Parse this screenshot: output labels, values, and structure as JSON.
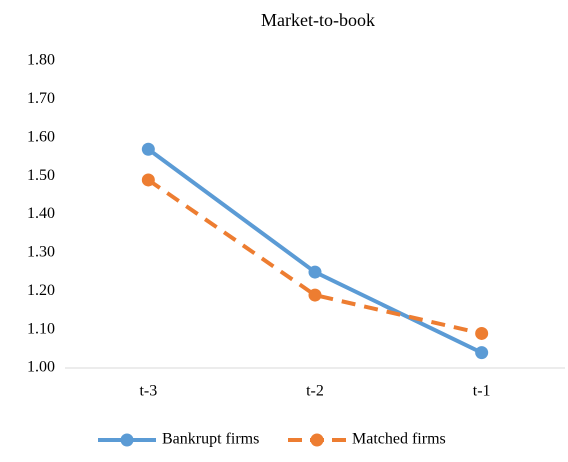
{
  "chart_data": {
    "type": "line",
    "title": "Market-to-book",
    "categories": [
      "t-3",
      "t-2",
      "t-1"
    ],
    "series": [
      {
        "name": "Bankrupt firms",
        "color": "#5b9bd5",
        "line_style": "solid",
        "values": [
          1.57,
          1.25,
          1.04
        ]
      },
      {
        "name": "Matched firms",
        "color": "#ed7d31",
        "line_style": "dashed",
        "values": [
          1.49,
          1.19,
          1.09
        ]
      }
    ],
    "ylim": [
      1.0,
      1.8
    ],
    "yticks": [
      {
        "value": 1.0,
        "label": "1.00"
      },
      {
        "value": 1.1,
        "label": "1.10"
      },
      {
        "value": 1.2,
        "label": "1.20"
      },
      {
        "value": 1.3,
        "label": "1.30"
      },
      {
        "value": 1.4,
        "label": "1.40"
      },
      {
        "value": 1.5,
        "label": "1.50"
      },
      {
        "value": 1.6,
        "label": "1.60"
      },
      {
        "value": 1.7,
        "label": "1.70"
      },
      {
        "value": 1.8,
        "label": "1.80"
      }
    ],
    "grid": false,
    "legend": "bottom",
    "markers": true
  }
}
